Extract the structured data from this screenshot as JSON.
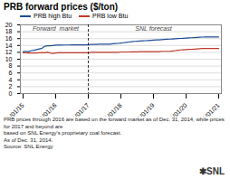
{
  "chart_data": {
    "type": "line",
    "title": "PRB forward prices ($/ton)",
    "categories": [
      "01/01/15",
      null,
      null,
      null,
      null,
      null,
      null,
      null,
      null,
      null,
      null,
      null,
      "01/01/16",
      null,
      null,
      null,
      null,
      null,
      null,
      null,
      null,
      null,
      null,
      null,
      "01/01/17",
      null,
      null,
      null,
      null,
      null,
      null,
      null,
      null,
      null,
      null,
      null,
      "01/01/18",
      null,
      null,
      null,
      null,
      null,
      null,
      null,
      null,
      null,
      null,
      null,
      "01/01/19",
      null,
      null,
      null,
      null,
      null,
      null,
      null,
      null,
      null,
      null,
      null,
      "01/01/20",
      null,
      null,
      null,
      null,
      null,
      null,
      null,
      null,
      null,
      null,
      null,
      "01/01/21"
    ],
    "series": [
      {
        "name": "PRB high Btu",
        "color": "#1f4e96",
        "values": [
          12.2,
          12.3,
          12.2,
          12.5,
          12.6,
          12.8,
          13.0,
          13.2,
          13.8,
          13.9,
          13.9,
          14.0,
          14.1,
          14.1,
          14.1,
          14.15,
          14.15,
          14.15,
          14.2,
          14.2,
          14.2,
          14.2,
          14.2,
          14.2,
          14.2,
          14.3,
          14.3,
          14.3,
          14.35,
          14.35,
          14.4,
          14.4,
          14.4,
          14.5,
          14.55,
          14.6,
          14.7,
          14.8,
          14.9,
          15.0,
          15.1,
          15.2,
          15.25,
          15.3,
          15.35,
          15.4,
          15.45,
          15.5,
          15.55,
          15.6,
          15.65,
          15.7,
          15.75,
          15.8,
          15.85,
          15.9,
          15.95,
          16.0,
          16.05,
          16.1,
          16.15,
          16.2,
          16.25,
          16.3,
          16.35,
          16.4,
          16.45,
          16.5,
          16.5,
          16.5,
          16.5,
          16.5,
          16.5
        ]
      },
      {
        "name": "PRB low Btu",
        "color": "#c0392b",
        "values": [
          11.9,
          11.9,
          11.8,
          11.8,
          11.8,
          11.8,
          11.85,
          11.9,
          11.9,
          12.0,
          11.8,
          11.7,
          11.8,
          11.9,
          11.9,
          11.85,
          11.85,
          11.85,
          11.85,
          11.85,
          11.85,
          11.85,
          11.85,
          11.85,
          11.85,
          12.0,
          12.0,
          12.0,
          12.0,
          12.0,
          12.0,
          12.0,
          12.0,
          12.0,
          12.0,
          12.0,
          12.1,
          12.1,
          12.1,
          12.1,
          12.15,
          12.15,
          12.15,
          12.2,
          12.2,
          12.2,
          12.2,
          12.2,
          12.2,
          12.2,
          12.2,
          12.3,
          12.3,
          12.3,
          12.3,
          12.4,
          12.5,
          12.6,
          12.7,
          12.75,
          12.8,
          12.85,
          12.9,
          12.95,
          13.0,
          13.05,
          13.1,
          13.15,
          13.15,
          13.15,
          13.15,
          13.15,
          13.15
        ]
      }
    ],
    "ylim": [
      0,
      20
    ],
    "yticks": [
      0,
      2,
      4,
      6,
      8,
      10,
      12,
      14,
      16,
      18,
      20
    ],
    "grid": true,
    "legend": "top left",
    "annotations": [
      {
        "type": "vline",
        "x": "01/01/17",
        "line_style": "dashed"
      },
      {
        "text": "Forward  market",
        "side": "left"
      },
      {
        "text": "SNL forecast",
        "side": "right"
      }
    ],
    "notes": [
      "PRB prices through 2016 are based on the forward market as of Dec. 31, 2014, while prices for 2017 and beyond are",
      "based on SNL Energy's proprietary coal forecast.",
      "As of Dec. 31, 2014.",
      "Source: SNL Energy"
    ],
    "logo": "✱SNL"
  }
}
